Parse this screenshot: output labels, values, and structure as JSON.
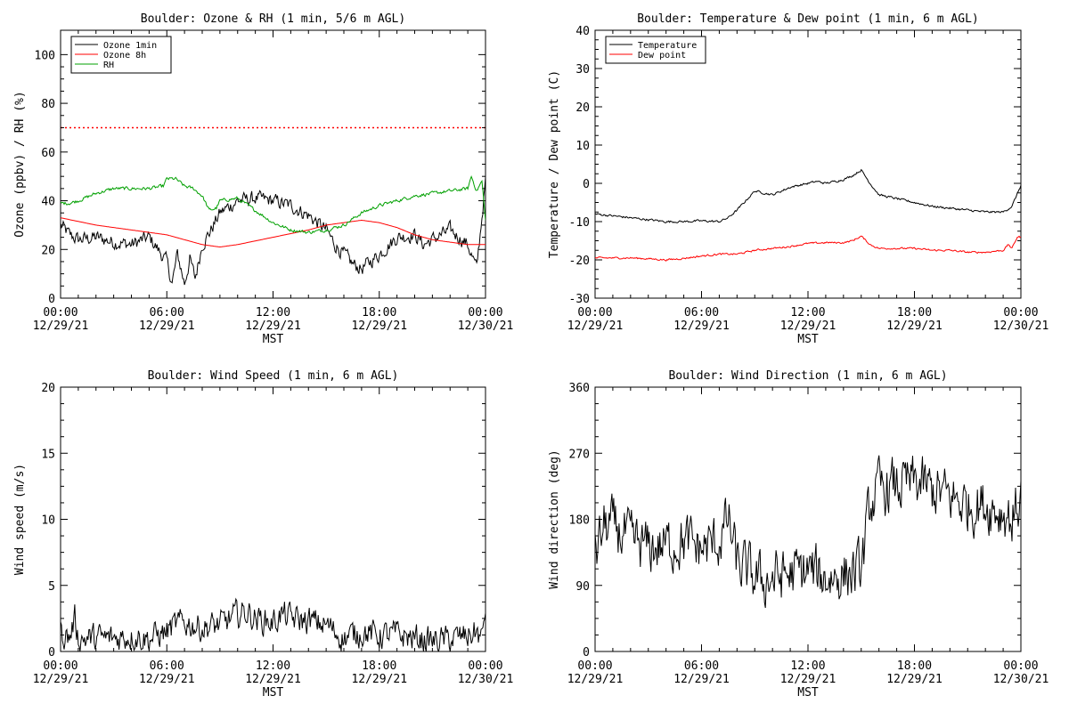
{
  "chart_data": [
    {
      "type": "line",
      "title": "Boulder: Ozone & RH (1 min, 5/6 m AGL)",
      "xlabel": "MST",
      "ylabel": "Ozone (ppbv) / RH (%)",
      "xlim": [
        0,
        24
      ],
      "ylim": [
        0,
        110
      ],
      "yticks": [
        0,
        20,
        40,
        60,
        80,
        100
      ],
      "xticks": [
        0,
        6,
        12,
        18,
        24
      ],
      "xtick_labels": [
        [
          "00:00",
          "12/29/21"
        ],
        [
          "06:00",
          "12/29/21"
        ],
        [
          "12:00",
          "12/29/21"
        ],
        [
          "18:00",
          "12/29/21"
        ],
        [
          "00:00",
          "12/30/21"
        ]
      ],
      "legend": "top-left",
      "reference_line": {
        "y": 70,
        "color": "#ff0000",
        "style": "dotted"
      },
      "series": [
        {
          "name": "Ozone 1min",
          "color": "#000000",
          "noise": 2.5,
          "x": [
            0,
            0.5,
            1,
            2,
            3,
            4,
            5,
            5.5,
            6,
            6.3,
            6.6,
            7,
            7.3,
            7.6,
            8,
            8.5,
            9,
            10,
            11,
            12,
            13,
            14,
            15,
            15.5,
            16,
            16.5,
            17,
            18,
            19,
            20,
            20.5,
            21,
            22,
            23,
            23.5,
            24
          ],
          "y": [
            30,
            26,
            24,
            25,
            23,
            22,
            25,
            20,
            15,
            6,
            18,
            6,
            16,
            8,
            22,
            28,
            35,
            40,
            41,
            40,
            38,
            34,
            28,
            22,
            18,
            14,
            12,
            18,
            25,
            26,
            22,
            24,
            28,
            22,
            12,
            48
          ]
        },
        {
          "name": "Ozone 8h",
          "color": "#ff0000",
          "noise": 0,
          "x": [
            0,
            2,
            4,
            6,
            7,
            8,
            9,
            10,
            12,
            14,
            15,
            16,
            17,
            18,
            19,
            20,
            21,
            22,
            23,
            24
          ],
          "y": [
            33,
            30,
            28,
            26,
            24,
            22,
            21,
            22,
            25,
            28,
            30,
            31,
            32,
            31,
            29,
            26,
            24,
            23,
            22,
            22
          ]
        },
        {
          "name": "RH",
          "color": "#00a000",
          "noise": 0.6,
          "x": [
            0,
            0.5,
            1,
            2,
            3,
            4,
            5,
            5.8,
            6,
            6.5,
            7,
            7.5,
            8,
            8.4,
            8.8,
            9,
            10,
            11,
            12,
            13,
            14,
            15,
            16,
            17,
            18,
            19,
            20,
            21,
            22,
            23,
            23.2,
            23.5,
            23.8,
            24
          ],
          "y": [
            39,
            39,
            40,
            43,
            45,
            45,
            45,
            46,
            49,
            49,
            46,
            45,
            42,
            36,
            37,
            40,
            41,
            36,
            31,
            28,
            27,
            28,
            30,
            35,
            38,
            40,
            42,
            43,
            44,
            45,
            50,
            44,
            48,
            32
          ]
        }
      ]
    },
    {
      "type": "line",
      "title": "Boulder: Temperature & Dew point (1 min, 6 m AGL)",
      "xlabel": "MST",
      "ylabel": "Temperature / Dew point (C)",
      "xlim": [
        0,
        24
      ],
      "ylim": [
        -30,
        40
      ],
      "yticks": [
        -30,
        -20,
        -10,
        0,
        10,
        20,
        30,
        40
      ],
      "xticks": [
        0,
        6,
        12,
        18,
        24
      ],
      "xtick_labels": [
        [
          "00:00",
          "12/29/21"
        ],
        [
          "06:00",
          "12/29/21"
        ],
        [
          "12:00",
          "12/29/21"
        ],
        [
          "18:00",
          "12/29/21"
        ],
        [
          "00:00",
          "12/30/21"
        ]
      ],
      "legend": "top-left",
      "series": [
        {
          "name": "Temperature",
          "color": "#000000",
          "noise": 0.25,
          "x": [
            0,
            1,
            2,
            3,
            4,
            5,
            6,
            7,
            7.5,
            8,
            9,
            9.5,
            10,
            11,
            12,
            12.5,
            13,
            14,
            14.5,
            15,
            15.5,
            16,
            17,
            18,
            19,
            20,
            21,
            22,
            23,
            23.5,
            24
          ],
          "y": [
            -8,
            -8.5,
            -9,
            -9.5,
            -10,
            -10,
            -9.8,
            -10,
            -9,
            -7,
            -2,
            -2.5,
            -3,
            -1,
            0,
            0.5,
            0,
            1,
            2,
            3.5,
            0,
            -3,
            -4,
            -5,
            -6,
            -6.5,
            -7,
            -7.5,
            -7.5,
            -6,
            -0.5
          ]
        },
        {
          "name": "Dew point",
          "color": "#ff0000",
          "noise": 0.2,
          "x": [
            0,
            1,
            2,
            3,
            4,
            5,
            6,
            7,
            8,
            9,
            10,
            11,
            12,
            13,
            14,
            14.5,
            15,
            15.5,
            16,
            17,
            18,
            19,
            20,
            21,
            22,
            23,
            23.3,
            23.5,
            23.8,
            24
          ],
          "y": [
            -19.5,
            -19.5,
            -19.5,
            -19.7,
            -20,
            -19.6,
            -19,
            -18.5,
            -18.5,
            -17.5,
            -17,
            -16.5,
            -15.7,
            -15.5,
            -15.5,
            -15,
            -13.8,
            -16,
            -17,
            -17,
            -17,
            -17.5,
            -17.5,
            -18,
            -18,
            -17.5,
            -16,
            -17,
            -14,
            -14
          ]
        }
      ]
    },
    {
      "type": "line",
      "title": "Boulder: Wind Speed (1 min, 6 m AGL)",
      "xlabel": "MST",
      "ylabel": "Wind speed (m/s)",
      "xlim": [
        0,
        24
      ],
      "ylim": [
        0,
        20
      ],
      "yticks": [
        0,
        5,
        10,
        15,
        20
      ],
      "xticks": [
        0,
        6,
        12,
        18,
        24
      ],
      "xtick_labels": [
        [
          "00:00",
          "12/29/21"
        ],
        [
          "06:00",
          "12/29/21"
        ],
        [
          "12:00",
          "12/29/21"
        ],
        [
          "18:00",
          "12/29/21"
        ],
        [
          "00:00",
          "12/30/21"
        ]
      ],
      "series": [
        {
          "name": "",
          "color": "#000000",
          "noise": 0.9,
          "x": [
            0,
            0.5,
            0.8,
            1,
            2,
            3,
            4,
            5,
            6,
            6.5,
            7,
            8,
            9,
            10,
            10.5,
            11,
            12,
            12.5,
            13,
            14,
            15,
            15.5,
            16,
            17,
            18,
            19,
            20,
            21,
            22,
            23,
            23.5,
            23.8,
            24
          ],
          "y": [
            1.5,
            1.0,
            2.5,
            1.0,
            1.0,
            1.0,
            1.2,
            1.0,
            1.5,
            2.0,
            2.2,
            1.8,
            2.0,
            2.8,
            3.0,
            2.5,
            2.2,
            2.8,
            2.5,
            2.3,
            2.0,
            1.5,
            1.0,
            1.5,
            1.2,
            1.3,
            1.0,
            0.8,
            0.9,
            1.2,
            1.5,
            0.8,
            3.5
          ]
        }
      ]
    },
    {
      "type": "line",
      "title": "Boulder: Wind Direction (1 min, 6 m AGL)",
      "xlabel": "MST",
      "ylabel": "Wind direction (deg)",
      "xlim": [
        0,
        24
      ],
      "ylim": [
        0,
        360
      ],
      "yticks": [
        0,
        90,
        180,
        270,
        360
      ],
      "xticks": [
        0,
        6,
        12,
        18,
        24
      ],
      "xtick_labels": [
        [
          "00:00",
          "12/29/21"
        ],
        [
          "06:00",
          "12/29/21"
        ],
        [
          "12:00",
          "12/29/21"
        ],
        [
          "18:00",
          "12/29/21"
        ],
        [
          "00:00",
          "12/30/21"
        ]
      ],
      "series": [
        {
          "name": "",
          "color": "#000000",
          "noise": 32,
          "x": [
            0,
            0.5,
            1,
            2,
            3,
            4,
            5,
            6,
            7,
            7.5,
            8,
            9,
            9.5,
            10,
            11,
            12,
            13,
            14,
            15,
            15.5,
            16,
            17,
            18,
            19,
            20,
            21,
            22,
            23,
            23.5,
            24
          ],
          "y": [
            130,
            170,
            170,
            150,
            140,
            145,
            150,
            140,
            150,
            180,
            120,
            100,
            95,
            100,
            105,
            110,
            100,
            105,
            110,
            200,
            220,
            225,
            230,
            220,
            210,
            200,
            200,
            190,
            180,
            210
          ]
        }
      ]
    }
  ]
}
